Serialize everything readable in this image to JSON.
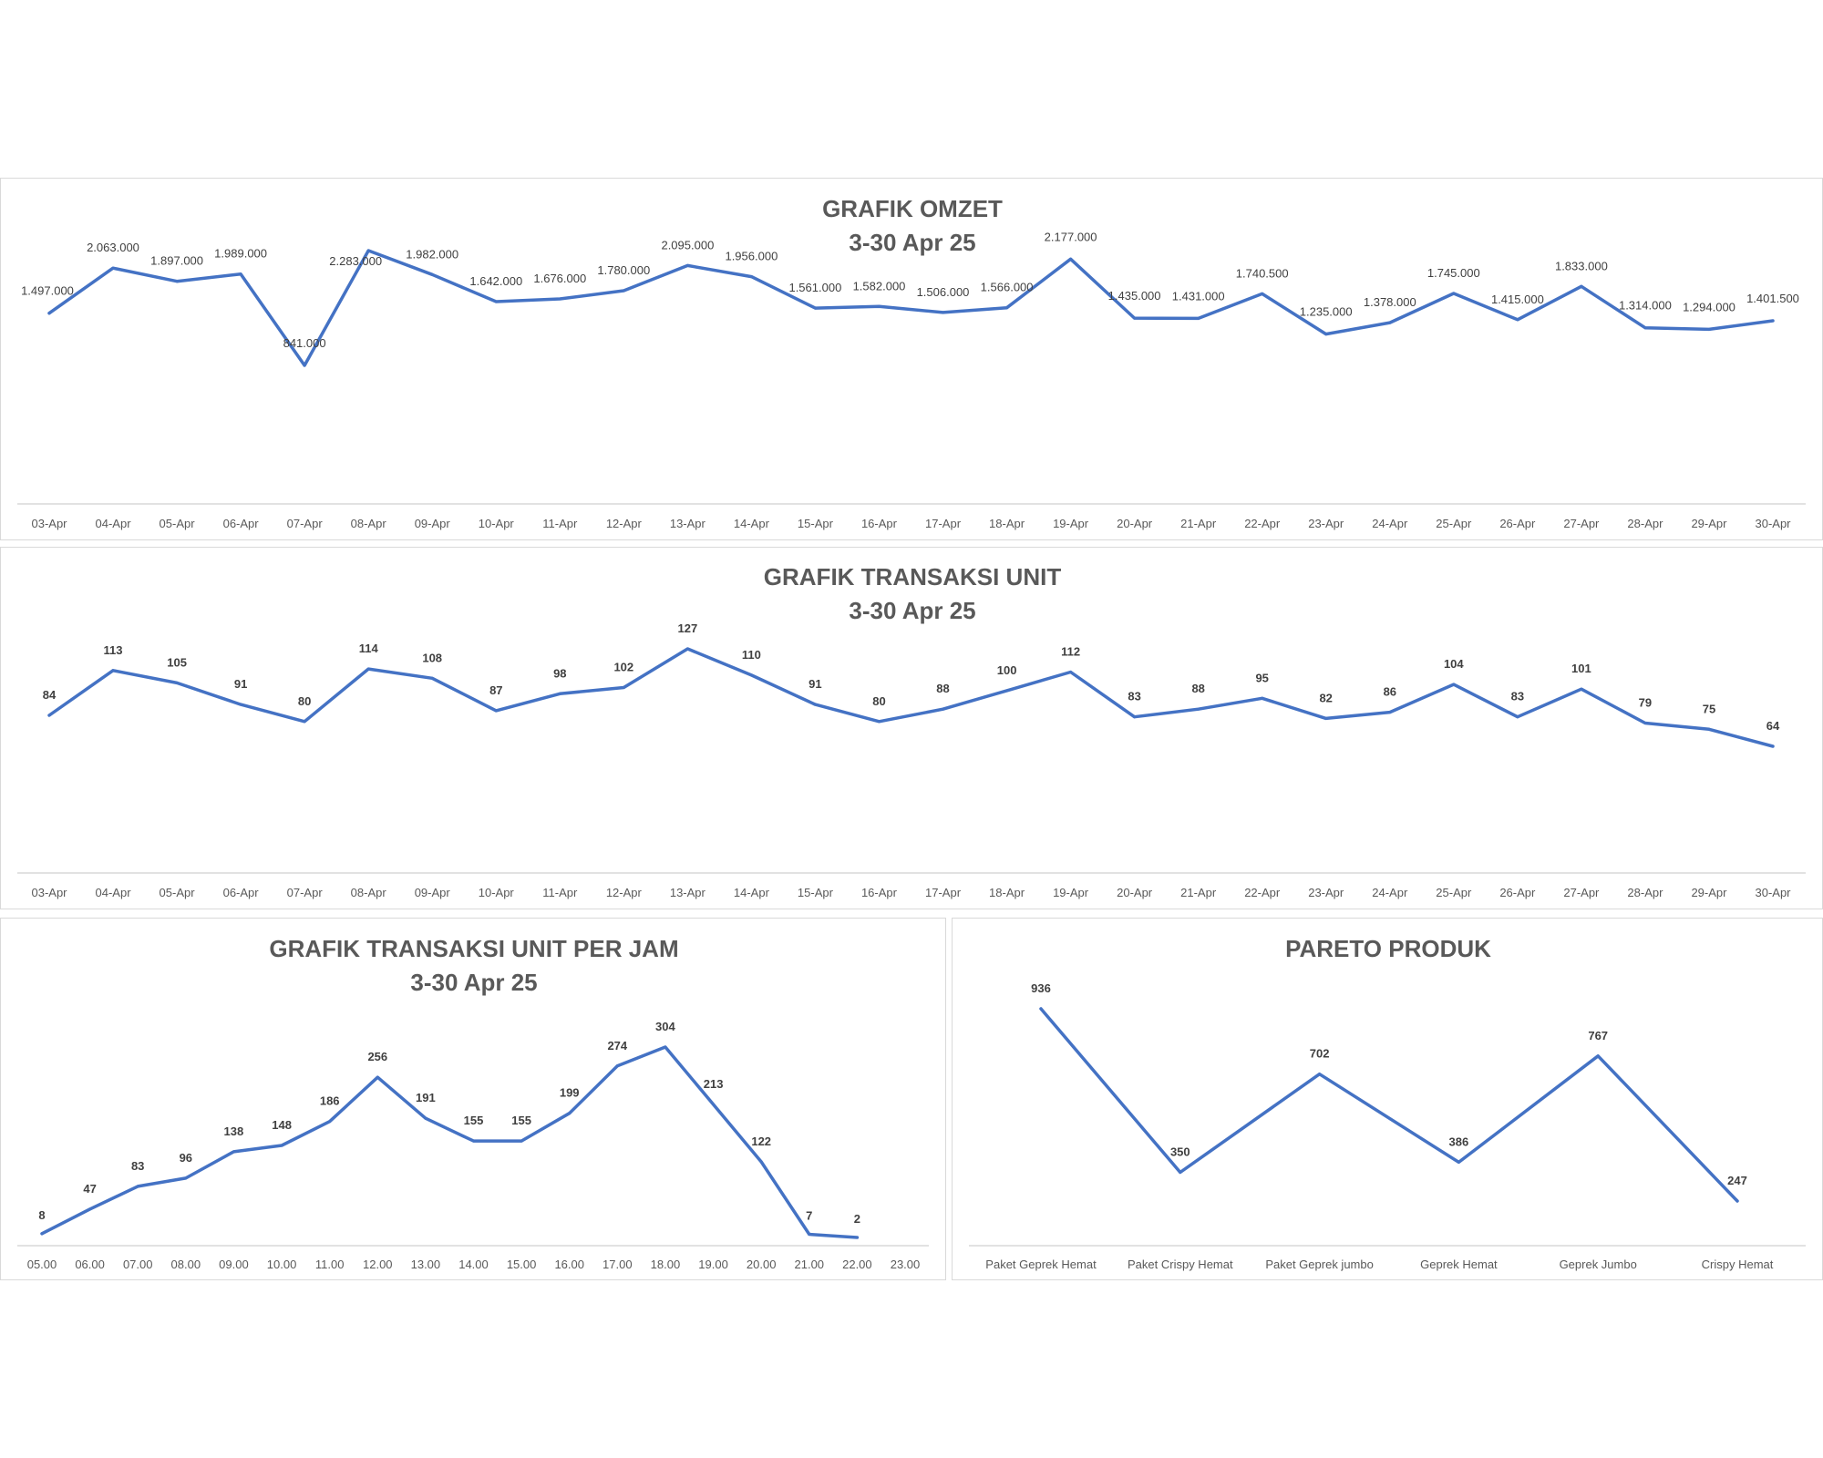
{
  "colors": {
    "line": "#4472C4",
    "axis": "#d9d9d9",
    "text": "#595959",
    "label": "#404040"
  },
  "chart_data": [
    {
      "type": "line",
      "title": "GRAFIK OMZET",
      "subtitle": "3-30 Apr 25",
      "x": [
        "03-Apr",
        "04-Apr",
        "05-Apr",
        "06-Apr",
        "07-Apr",
        "08-Apr",
        "09-Apr",
        "10-Apr",
        "11-Apr",
        "12-Apr",
        "13-Apr",
        "14-Apr",
        "15-Apr",
        "16-Apr",
        "17-Apr",
        "18-Apr",
        "19-Apr",
        "20-Apr",
        "21-Apr",
        "22-Apr",
        "23-Apr",
        "24-Apr",
        "25-Apr",
        "26-Apr",
        "27-Apr",
        "28-Apr",
        "29-Apr",
        "30-Apr"
      ],
      "values": [
        1497000,
        2063000,
        1897000,
        1989000,
        841000,
        2283000,
        1982000,
        1642000,
        1676000,
        1780000,
        2095000,
        1956000,
        1561000,
        1582000,
        1506000,
        1566000,
        2177000,
        1435000,
        1431000,
        1740500,
        1235000,
        1378000,
        1745000,
        1415000,
        1833000,
        1314000,
        1294000,
        1401500
      ],
      "data_labels": [
        "1.497.000",
        "2.063.000",
        "1.897.000",
        "1.989.000",
        "841.000",
        "2.283.000",
        "1.982.000",
        "1.642.000",
        "1.676.000",
        "1.780.000",
        "2.095.000",
        "1.956.000",
        "1.561.000",
        "1.582.000",
        "1.506.000",
        "1.566.000",
        "2.177.000",
        "1.435.000",
        "1.431.000",
        "1.740.500",
        "1.235.000",
        "1.378.000",
        "1.745.000",
        "1.415.000",
        "1.833.000",
        "1.314.000",
        "1.294.000",
        "1.401.500"
      ],
      "ylim": [
        0,
        2500000
      ],
      "grid": false,
      "legend": "none"
    },
    {
      "type": "line",
      "title": "GRAFIK TRANSAKSI UNIT",
      "subtitle": "3-30 Apr 25",
      "x": [
        "03-Apr",
        "04-Apr",
        "05-Apr",
        "06-Apr",
        "07-Apr",
        "08-Apr",
        "09-Apr",
        "10-Apr",
        "11-Apr",
        "12-Apr",
        "13-Apr",
        "14-Apr",
        "15-Apr",
        "16-Apr",
        "17-Apr",
        "18-Apr",
        "19-Apr",
        "20-Apr",
        "21-Apr",
        "22-Apr",
        "23-Apr",
        "24-Apr",
        "25-Apr",
        "26-Apr",
        "27-Apr",
        "28-Apr",
        "29-Apr",
        "30-Apr"
      ],
      "values": [
        84,
        113,
        105,
        91,
        80,
        114,
        108,
        87,
        98,
        102,
        127,
        110,
        91,
        80,
        88,
        100,
        112,
        83,
        88,
        95,
        82,
        86,
        104,
        83,
        101,
        79,
        75,
        64
      ],
      "data_labels": [
        "84",
        "113",
        "105",
        "91",
        "80",
        "114",
        "108",
        "87",
        "98",
        "102",
        "127",
        "110",
        "91",
        "80",
        "88",
        "100",
        "112",
        "83",
        "88",
        "95",
        "82",
        "86",
        "104",
        "83",
        "101",
        "79",
        "75",
        "64"
      ],
      "ylim": [
        0,
        140
      ],
      "grid": false,
      "legend": "none"
    },
    {
      "type": "line",
      "title": "GRAFIK TRANSAKSI UNIT PER JAM",
      "subtitle": "3-30 Apr 25",
      "x": [
        "05.00",
        "06.00",
        "07.00",
        "08.00",
        "09.00",
        "10.00",
        "11.00",
        "12.00",
        "13.00",
        "14.00",
        "15.00",
        "16.00",
        "17.00",
        "18.00",
        "19.00",
        "20.00",
        "21.00",
        "22.00",
        "23.00"
      ],
      "values": [
        8,
        47,
        83,
        96,
        138,
        148,
        186,
        256,
        191,
        155,
        155,
        199,
        274,
        304,
        213,
        122,
        7,
        2,
        null
      ],
      "data_labels": [
        "8",
        "47",
        "83",
        "96",
        "138",
        "148",
        "186",
        "256",
        "191",
        "155",
        "155",
        "199",
        "274",
        "304",
        "213",
        "122",
        "7",
        "2",
        ""
      ],
      "ylim": [
        0,
        320
      ],
      "grid": false,
      "legend": "none"
    },
    {
      "type": "line",
      "title": "PARETO PRODUK",
      "subtitle": "",
      "x": [
        "Paket Geprek Hemat",
        "Paket Crispy Hemat",
        "Paket Geprek jumbo",
        "Geprek Hemat",
        "Geprek Jumbo",
        "Crispy Hemat"
      ],
      "values": [
        936,
        350,
        702,
        386,
        767,
        247
      ],
      "data_labels": [
        "936",
        "350",
        "702",
        "386",
        "767",
        "247"
      ],
      "ylim": [
        0,
        1000
      ],
      "grid": false,
      "legend": "none"
    }
  ]
}
